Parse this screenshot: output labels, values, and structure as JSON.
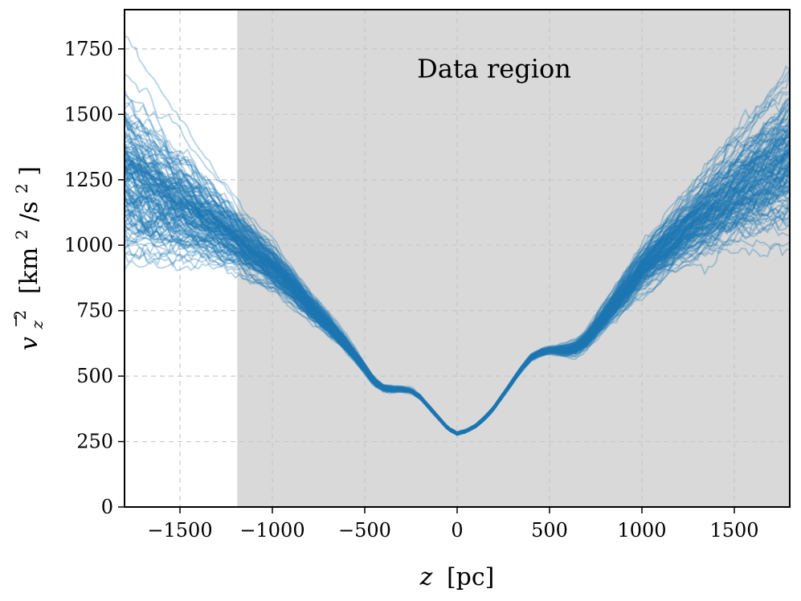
{
  "chart_data": {
    "type": "line",
    "title": "",
    "xlabel_italic": "z",
    "xlabel_unit": "[pc]",
    "ylabel_main": "v",
    "ylabel_sub": "z",
    "ylabel_sup": "2",
    "ylabel_unit_a": "[km",
    "ylabel_unit_sup1": "2",
    "ylabel_unit_b": "/s",
    "ylabel_unit_sup2": "2",
    "ylabel_unit_c": "]",
    "xlim": [
      -1800,
      1800
    ],
    "ylim": [
      0,
      1900
    ],
    "x_ticks": [
      -1500,
      -1000,
      -500,
      0,
      500,
      1000,
      1500
    ],
    "x_tick_labels": [
      "−1500",
      "−1000",
      "−500",
      "0",
      "500",
      "1000",
      "1500"
    ],
    "y_ticks": [
      0,
      250,
      500,
      750,
      1000,
      1250,
      1500,
      1750
    ],
    "y_tick_labels": [
      "0",
      "250",
      "500",
      "750",
      "1000",
      "1250",
      "1500",
      "1750"
    ],
    "grid": true,
    "shaded_region": {
      "x_range": [
        -1190,
        1800
      ],
      "color": "#d9d9d9",
      "label": "Data region"
    },
    "series_color": "#1f77b4",
    "series_count": 150,
    "median_profile": {
      "x": [
        -1800,
        -1600,
        -1400,
        -1200,
        -1000,
        -900,
        -800,
        -700,
        -600,
        -500,
        -450,
        -400,
        -350,
        -300,
        -250,
        -200,
        -150,
        -100,
        -50,
        0,
        50,
        100,
        150,
        200,
        250,
        300,
        350,
        400,
        450,
        500,
        550,
        600,
        650,
        700,
        800,
        900,
        1000,
        1200,
        1400,
        1600,
        1800
      ],
      "y": [
        1280,
        1200,
        1120,
        1030,
        920,
        850,
        770,
        700,
        620,
        530,
        480,
        455,
        450,
        450,
        445,
        420,
        380,
        340,
        300,
        280,
        290,
        310,
        340,
        380,
        430,
        480,
        530,
        570,
        590,
        600,
        600,
        600,
        610,
        640,
        730,
        820,
        910,
        1040,
        1150,
        1250,
        1340
      ]
    },
    "spread_at_x": {
      "x": [
        -1800,
        -1200,
        -900,
        -700,
        -500,
        -300,
        0,
        300,
        500,
        700,
        900,
        1200,
        1800
      ],
      "y": [
        130,
        70,
        50,
        35,
        20,
        12,
        8,
        12,
        15,
        30,
        50,
        70,
        110
      ]
    },
    "outlier_endpoints": {
      "left_max": 1800,
      "left_min": 960,
      "right_max": 1680,
      "right_min": 1150
    }
  }
}
